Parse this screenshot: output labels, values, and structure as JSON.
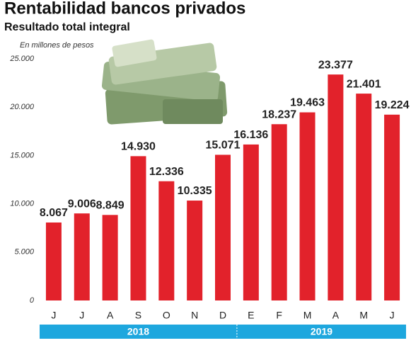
{
  "chart_data": {
    "type": "bar",
    "title": "Rentabilidad bancos privados",
    "subtitle": "Resultado total integral",
    "y_label": "En millones de pesos",
    "groups": [
      {
        "label": "2018",
        "categories": [
          "J",
          "J",
          "A",
          "S",
          "O",
          "N",
          "D"
        ]
      },
      {
        "label": "2019",
        "categories": [
          "E",
          "F",
          "M",
          "A",
          "M",
          "J"
        ]
      }
    ],
    "values": [
      8067,
      9006,
      8849,
      14930,
      12336,
      10335,
      15071,
      16136,
      18237,
      19463,
      23377,
      21401,
      19224
    ],
    "value_labels": [
      "8.067",
      "9.006",
      "8.849",
      "14.930",
      "12.336",
      "10.335",
      "15.071",
      "16.136",
      "18.237",
      "19.463",
      "23.377",
      "21.401",
      "19.224"
    ],
    "color": "#e2222b",
    "ylim": [
      0,
      25000
    ],
    "yticks": [
      0,
      {
        "value": 5000,
        "label": "5.000"
      },
      {
        "value": 10000,
        "label": "10.000"
      },
      {
        "value": 15000,
        "label": "15.000"
      },
      {
        "value": 20000,
        "label": "20.000"
      },
      {
        "value": 25000,
        "label": "25.000"
      }
    ],
    "grid": false
  }
}
